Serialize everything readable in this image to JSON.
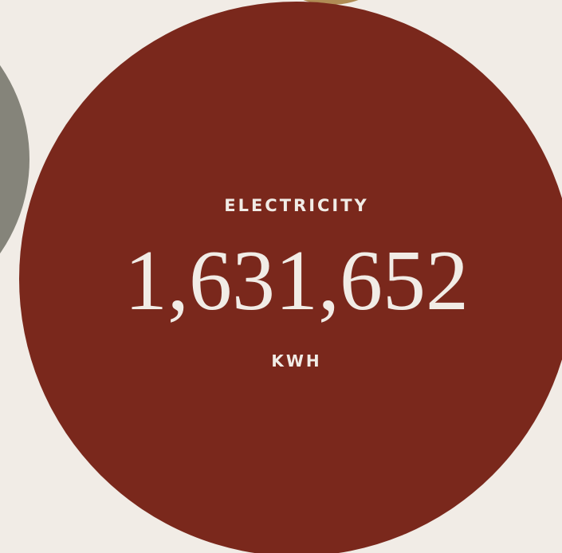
{
  "stat": {
    "label": "ELECTRICITY",
    "value": "1,631,652",
    "unit": "KWH"
  }
}
